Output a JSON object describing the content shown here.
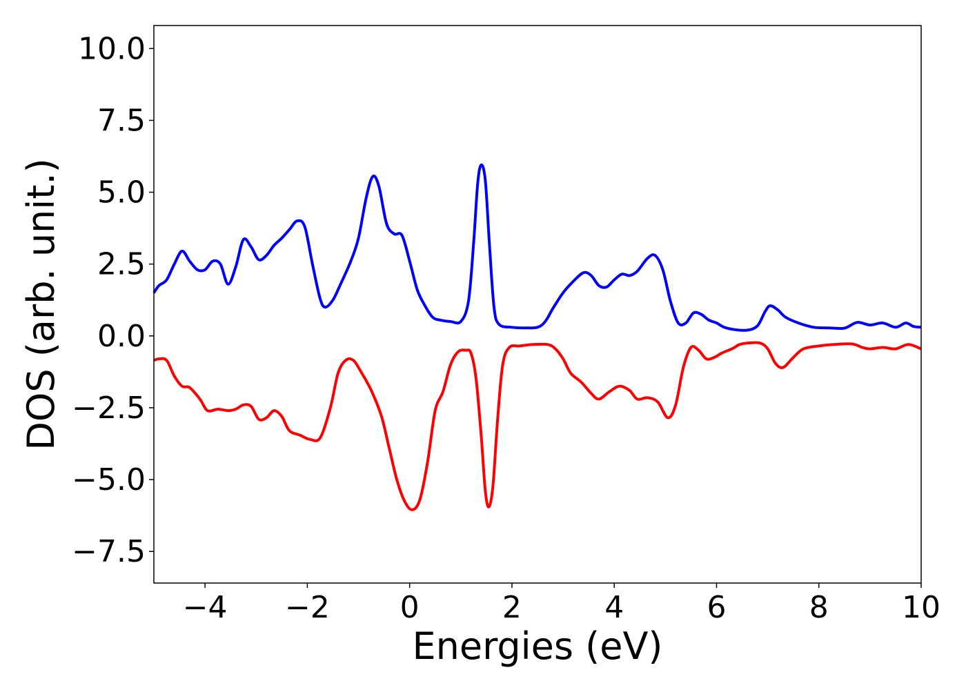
{
  "chart_data": {
    "type": "line",
    "xlabel": "Energies (eV)",
    "ylabel": "DOS (arb. unit.)",
    "xlim": [
      -5,
      10
    ],
    "ylim": [
      -8.6,
      10.8
    ],
    "grid": false,
    "x_ticks": [
      {
        "value": -4,
        "label": "−4"
      },
      {
        "value": -2,
        "label": "−2"
      },
      {
        "value": 0,
        "label": "0"
      },
      {
        "value": 2,
        "label": "2"
      },
      {
        "value": 4,
        "label": "4"
      },
      {
        "value": 6,
        "label": "6"
      },
      {
        "value": 8,
        "label": "8"
      },
      {
        "value": 10,
        "label": "10"
      }
    ],
    "y_ticks": [
      {
        "value": 10,
        "label": "10.0"
      },
      {
        "value": 7.5,
        "label": "7.5"
      },
      {
        "value": 5,
        "label": "5.0"
      },
      {
        "value": 2.5,
        "label": "2.5"
      },
      {
        "value": 0,
        "label": "0.0"
      },
      {
        "value": -2.5,
        "label": "−2.5"
      },
      {
        "value": -5,
        "label": "−5.0"
      },
      {
        "value": -7.5,
        "label": "−7.5"
      }
    ],
    "series": [
      {
        "color": "#0000ff",
        "points": [
          [
            -5.0,
            1.5
          ],
          [
            -4.9,
            1.75
          ],
          [
            -4.75,
            1.95
          ],
          [
            -4.6,
            2.5
          ],
          [
            -4.45,
            2.95
          ],
          [
            -4.3,
            2.6
          ],
          [
            -4.15,
            2.3
          ],
          [
            -4.0,
            2.3
          ],
          [
            -3.85,
            2.6
          ],
          [
            -3.7,
            2.5
          ],
          [
            -3.55,
            1.8
          ],
          [
            -3.4,
            2.4
          ],
          [
            -3.25,
            3.35
          ],
          [
            -3.1,
            3.1
          ],
          [
            -2.95,
            2.65
          ],
          [
            -2.8,
            2.8
          ],
          [
            -2.65,
            3.15
          ],
          [
            -2.5,
            3.4
          ],
          [
            -2.35,
            3.7
          ],
          [
            -2.2,
            4.0
          ],
          [
            -2.05,
            3.8
          ],
          [
            -1.9,
            2.5
          ],
          [
            -1.75,
            1.3
          ],
          [
            -1.65,
            1.0
          ],
          [
            -1.5,
            1.25
          ],
          [
            -1.35,
            1.8
          ],
          [
            -1.15,
            2.6
          ],
          [
            -1.0,
            3.4
          ],
          [
            -0.85,
            4.8
          ],
          [
            -0.72,
            5.55
          ],
          [
            -0.6,
            5.2
          ],
          [
            -0.45,
            3.9
          ],
          [
            -0.3,
            3.55
          ],
          [
            -0.15,
            3.5
          ],
          [
            0.0,
            2.6
          ],
          [
            0.15,
            1.6
          ],
          [
            0.3,
            1.05
          ],
          [
            0.45,
            0.65
          ],
          [
            0.6,
            0.55
          ],
          [
            0.8,
            0.5
          ],
          [
            1.0,
            0.5
          ],
          [
            1.15,
            1.2
          ],
          [
            1.25,
            3.2
          ],
          [
            1.33,
            5.3
          ],
          [
            1.4,
            5.95
          ],
          [
            1.48,
            5.4
          ],
          [
            1.56,
            3.2
          ],
          [
            1.65,
            1.0
          ],
          [
            1.75,
            0.4
          ],
          [
            2.0,
            0.3
          ],
          [
            2.25,
            0.28
          ],
          [
            2.5,
            0.3
          ],
          [
            2.65,
            0.5
          ],
          [
            2.8,
            0.95
          ],
          [
            3.0,
            1.5
          ],
          [
            3.2,
            1.9
          ],
          [
            3.4,
            2.2
          ],
          [
            3.55,
            2.1
          ],
          [
            3.7,
            1.75
          ],
          [
            3.85,
            1.7
          ],
          [
            4.0,
            1.95
          ],
          [
            4.15,
            2.15
          ],
          [
            4.3,
            2.1
          ],
          [
            4.45,
            2.25
          ],
          [
            4.65,
            2.7
          ],
          [
            4.8,
            2.8
          ],
          [
            4.95,
            2.3
          ],
          [
            5.1,
            1.2
          ],
          [
            5.25,
            0.45
          ],
          [
            5.4,
            0.45
          ],
          [
            5.55,
            0.8
          ],
          [
            5.7,
            0.75
          ],
          [
            5.85,
            0.55
          ],
          [
            6.0,
            0.45
          ],
          [
            6.15,
            0.3
          ],
          [
            6.35,
            0.22
          ],
          [
            6.6,
            0.2
          ],
          [
            6.8,
            0.35
          ],
          [
            6.95,
            0.85
          ],
          [
            7.05,
            1.05
          ],
          [
            7.2,
            0.9
          ],
          [
            7.35,
            0.65
          ],
          [
            7.6,
            0.45
          ],
          [
            7.9,
            0.3
          ],
          [
            8.2,
            0.28
          ],
          [
            8.5,
            0.27
          ],
          [
            8.75,
            0.47
          ],
          [
            9.0,
            0.38
          ],
          [
            9.25,
            0.45
          ],
          [
            9.5,
            0.3
          ],
          [
            9.7,
            0.45
          ],
          [
            9.85,
            0.33
          ],
          [
            10.0,
            0.3
          ]
        ]
      },
      {
        "color": "#ff0000",
        "points": [
          [
            -5.0,
            -0.85
          ],
          [
            -4.9,
            -0.8
          ],
          [
            -4.75,
            -0.85
          ],
          [
            -4.6,
            -1.4
          ],
          [
            -4.45,
            -1.75
          ],
          [
            -4.3,
            -1.8
          ],
          [
            -4.1,
            -2.2
          ],
          [
            -3.95,
            -2.6
          ],
          [
            -3.75,
            -2.55
          ],
          [
            -3.55,
            -2.6
          ],
          [
            -3.4,
            -2.55
          ],
          [
            -3.25,
            -2.4
          ],
          [
            -3.1,
            -2.45
          ],
          [
            -2.95,
            -2.9
          ],
          [
            -2.8,
            -2.85
          ],
          [
            -2.65,
            -2.6
          ],
          [
            -2.5,
            -2.8
          ],
          [
            -2.35,
            -3.3
          ],
          [
            -2.15,
            -3.45
          ],
          [
            -1.95,
            -3.6
          ],
          [
            -1.75,
            -3.55
          ],
          [
            -1.55,
            -2.5
          ],
          [
            -1.4,
            -1.3
          ],
          [
            -1.25,
            -0.85
          ],
          [
            -1.1,
            -0.85
          ],
          [
            -0.95,
            -1.25
          ],
          [
            -0.75,
            -1.9
          ],
          [
            -0.55,
            -2.8
          ],
          [
            -0.4,
            -3.9
          ],
          [
            -0.25,
            -5.0
          ],
          [
            -0.1,
            -5.75
          ],
          [
            0.05,
            -6.05
          ],
          [
            0.2,
            -5.7
          ],
          [
            0.35,
            -4.4
          ],
          [
            0.5,
            -2.6
          ],
          [
            0.65,
            -1.95
          ],
          [
            0.8,
            -1.0
          ],
          [
            0.95,
            -0.55
          ],
          [
            1.1,
            -0.5
          ],
          [
            1.2,
            -0.6
          ],
          [
            1.3,
            -1.5
          ],
          [
            1.4,
            -3.5
          ],
          [
            1.48,
            -5.4
          ],
          [
            1.55,
            -5.95
          ],
          [
            1.63,
            -5.2
          ],
          [
            1.72,
            -2.9
          ],
          [
            1.82,
            -1.0
          ],
          [
            1.95,
            -0.4
          ],
          [
            2.15,
            -0.35
          ],
          [
            2.4,
            -0.3
          ],
          [
            2.7,
            -0.3
          ],
          [
            2.85,
            -0.45
          ],
          [
            3.0,
            -0.8
          ],
          [
            3.15,
            -1.3
          ],
          [
            3.35,
            -1.6
          ],
          [
            3.55,
            -2.0
          ],
          [
            3.7,
            -2.2
          ],
          [
            3.9,
            -1.95
          ],
          [
            4.1,
            -1.75
          ],
          [
            4.3,
            -1.9
          ],
          [
            4.45,
            -2.2
          ],
          [
            4.65,
            -2.15
          ],
          [
            4.85,
            -2.3
          ],
          [
            5.05,
            -2.85
          ],
          [
            5.2,
            -2.4
          ],
          [
            5.35,
            -1.1
          ],
          [
            5.5,
            -0.4
          ],
          [
            5.65,
            -0.5
          ],
          [
            5.8,
            -0.8
          ],
          [
            5.95,
            -0.75
          ],
          [
            6.1,
            -0.6
          ],
          [
            6.3,
            -0.45
          ],
          [
            6.45,
            -0.3
          ],
          [
            6.6,
            -0.25
          ],
          [
            6.85,
            -0.25
          ],
          [
            7.0,
            -0.45
          ],
          [
            7.15,
            -0.95
          ],
          [
            7.3,
            -1.1
          ],
          [
            7.5,
            -0.75
          ],
          [
            7.7,
            -0.45
          ],
          [
            8.0,
            -0.35
          ],
          [
            8.3,
            -0.3
          ],
          [
            8.65,
            -0.28
          ],
          [
            8.85,
            -0.4
          ],
          [
            9.0,
            -0.45
          ],
          [
            9.25,
            -0.4
          ],
          [
            9.5,
            -0.45
          ],
          [
            9.75,
            -0.3
          ],
          [
            10.0,
            -0.45
          ]
        ]
      }
    ]
  }
}
